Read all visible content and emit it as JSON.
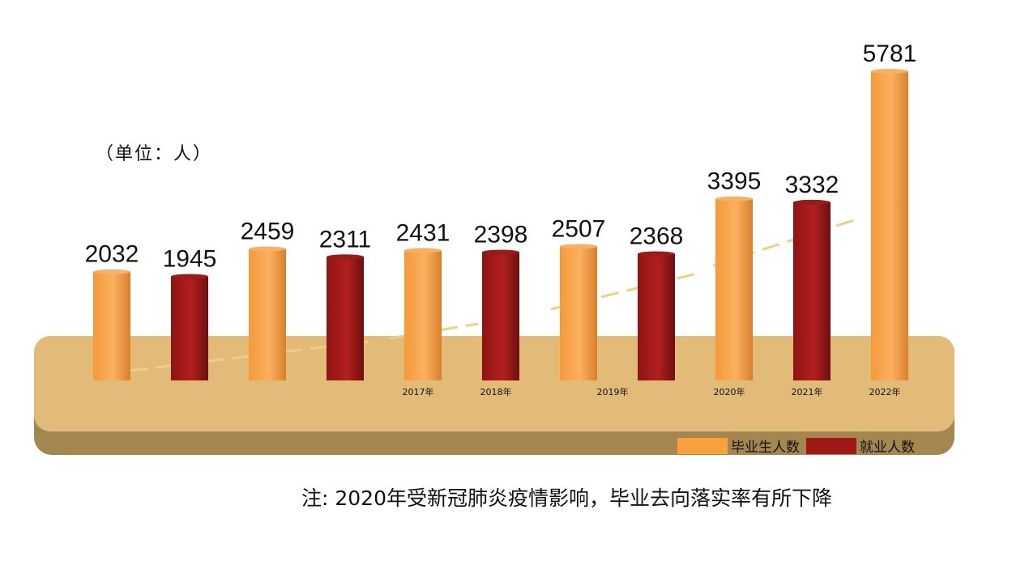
{
  "unit_label": "（单位：人）",
  "note": "注: 2020年受新冠肺炎疫情影响，毕业去向落实率有所下降",
  "colors": {
    "graduates": "#f9a03f",
    "employed": "#a01818",
    "platform_top": "#e0b877",
    "platform_side": "#a88951",
    "trend": "#f1cd8a"
  },
  "chart_data": {
    "type": "bar",
    "title": "",
    "xlabel": "",
    "ylabel": "",
    "ylim": [
      0,
      6000
    ],
    "grid": false,
    "legend_position": "bottom-right",
    "groups": [
      {
        "year_label": "",
        "items": [
          {
            "series": 0,
            "value": 2032
          },
          {
            "series": 1,
            "value": 1945
          }
        ]
      },
      {
        "year_label": "",
        "items": [
          {
            "series": 0,
            "value": 2459
          },
          {
            "series": 1,
            "value": 2311
          }
        ]
      },
      {
        "year_label": "2017年",
        "items": [
          {
            "series": 0,
            "value": 2431
          }
        ]
      },
      {
        "year_label": "2018年",
        "items": [
          {
            "series": 1,
            "value": 2398
          }
        ]
      },
      {
        "year_label": "2019年",
        "items": [
          {
            "series": 0,
            "value": 2507
          },
          {
            "series": 1,
            "value": 2368
          }
        ]
      },
      {
        "year_label": "2020年",
        "items": [
          {
            "series": 0,
            "value": 3395
          }
        ]
      },
      {
        "year_label": "2021年",
        "items": [
          {
            "series": 1,
            "value": 3332
          }
        ]
      },
      {
        "year_label": "2022年",
        "items": [
          {
            "series": 0,
            "value": 5781
          }
        ]
      }
    ],
    "series": [
      {
        "name": "毕业生人数",
        "values": [
          2032,
          2459,
          2431,
          2507,
          3395,
          5781
        ]
      },
      {
        "name": "就业人数",
        "values": [
          1945,
          2311,
          2398,
          2368,
          3332
        ]
      }
    ]
  }
}
